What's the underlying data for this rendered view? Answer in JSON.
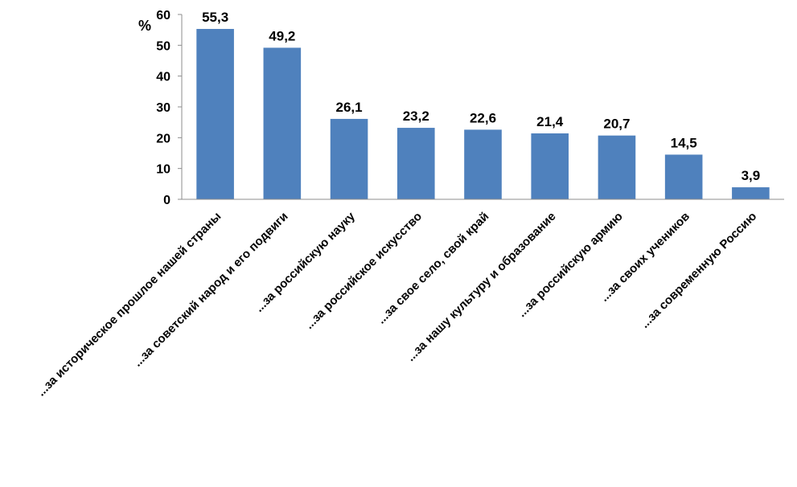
{
  "chart_data": {
    "type": "bar",
    "ylabel": "%",
    "ylim": [
      0,
      60
    ],
    "yticks": [
      "0",
      "10",
      "20",
      "30",
      "40",
      "50",
      "60"
    ],
    "grid": false,
    "legend": "none",
    "bar_color": "#4F81BD",
    "categories": [
      "...за историческое прошлое нашей страны",
      "...за советский народ и его подвиги",
      "...за российскую науку",
      "...за российское искусство",
      "...за свое село, свой край",
      "...за нашу культуру и образование",
      "...за российскую армию",
      "...за своих учеников",
      "...за современную Россию"
    ],
    "values": [
      55.3,
      49.2,
      26.1,
      23.2,
      22.6,
      21.4,
      20.7,
      14.5,
      3.9
    ],
    "value_labels": [
      "55,3",
      "49,2",
      "26,1",
      "23,2",
      "22,6",
      "21,4",
      "20,7",
      "14,5",
      "3,9"
    ]
  }
}
